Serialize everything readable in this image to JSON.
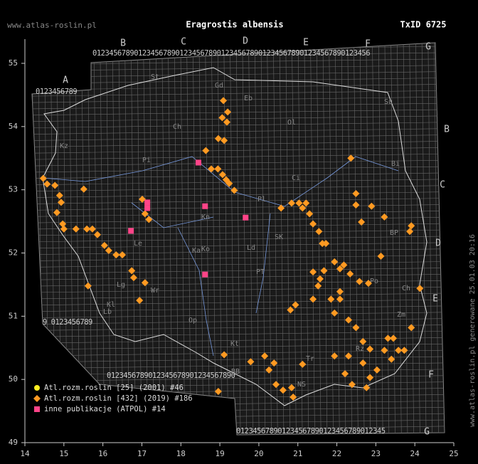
{
  "header": {
    "site": "www.atlas-roslin.pl",
    "title": "Eragrostis albensis",
    "txid": "TxID 6725"
  },
  "side_note": "www.atlas-roslin.pl generowane 25.01.03 20:16",
  "grid": {
    "top_letters": [
      "A",
      "B",
      "C",
      "D",
      "E",
      "F",
      "G"
    ],
    "right_letters": [
      "B",
      "C",
      "D",
      "E",
      "F",
      "G"
    ],
    "strips": [
      "0123456789012345678901234567890123456789012345678901234567890123456",
      "0123456789",
      "9 0123456789",
      "0123456789012345678901234567890",
      "012345678901234567890123456789012345"
    ],
    "regions": [
      "Gd",
      "Eb",
      "Kz",
      "Su",
      "St",
      "Ch",
      "Ol",
      "Pl",
      "Bi",
      "Ci",
      "Pi",
      "Kn",
      "SK",
      "BP",
      "Po",
      "Ko",
      "Ld",
      "Le",
      "Ka",
      "PT",
      "Ch",
      "Lg",
      "Zm",
      "Wr",
      "Kl",
      "Lb",
      "Op",
      "Kt",
      "Tr",
      "BB",
      "NS",
      "Rz"
    ]
  },
  "chart_data": {
    "type": "map",
    "xlim": [
      14,
      25
    ],
    "ylim": [
      49,
      55
    ],
    "xticks": [
      14,
      15,
      16,
      17,
      18,
      19,
      20,
      21,
      22,
      23,
      24,
      25
    ],
    "yticks": [
      49,
      50,
      51,
      52,
      53,
      54,
      55
    ],
    "series": [
      {
        "name": "Atl.rozm.roslin [25] (2001) #46",
        "color": "#ffee22",
        "shape": "circle",
        "lon": [],
        "lat": []
      },
      {
        "name": "Atl.rozm.roslin [432] (2019) #186",
        "color": "#ff9a22",
        "shape": "diamond",
        "lon": [
          19.09,
          19.2,
          19.06,
          19.18,
          18.96,
          19.11,
          18.64,
          18.78,
          18.95,
          19.07,
          19.16,
          19.24,
          19.37,
          20.57,
          20.84,
          21.03,
          21.12,
          21.21,
          21.3,
          21.39,
          21.54,
          21.63,
          21.72,
          14.47,
          14.57,
          14.77,
          14.89,
          14.93,
          14.82,
          14.97,
          15,
          15.31,
          15.59,
          15.73,
          15.86,
          16.04,
          16.15,
          16.34,
          16.5,
          16.74,
          16.79,
          17.08,
          16.94,
          15.62,
          15.51,
          17.01,
          17.08,
          17.18,
          21.94,
          22.18,
          22.08,
          22.34,
          22.58,
          22.81,
          21.67,
          21.39,
          21.57,
          21.52,
          21.39,
          20.81,
          20.94,
          22.08,
          22.08,
          21.85,
          21.94,
          22.3,
          22.49,
          22.67,
          22.85,
          23.22,
          23.58,
          23.73,
          23.31,
          21.94,
          22.3,
          22.67,
          23.03,
          23.4,
          22.85,
          22.39,
          22.21,
          22.76,
          21.12,
          20.84,
          20.15,
          20.39,
          20.26,
          20.44,
          20.62,
          20.88,
          19.79,
          19.11,
          18.96,
          22.36,
          22.49,
          22.49,
          22.89,
          23.22,
          22.63,
          23.91,
          23.87,
          23.13,
          24.13,
          23.91,
          23.45
        ],
        "lat": [
          54.41,
          54.23,
          54.14,
          54.07,
          53.81,
          53.78,
          53.62,
          53.33,
          53.33,
          53.24,
          53.16,
          53.1,
          52.99,
          52.71,
          52.79,
          52.79,
          52.71,
          52.79,
          52.62,
          52.46,
          52.34,
          52.15,
          52.15,
          53.18,
          53.09,
          53.07,
          52.91,
          52.8,
          52.64,
          52.46,
          52.38,
          52.38,
          52.38,
          52.38,
          52.29,
          52.12,
          52.04,
          51.97,
          51.97,
          51.72,
          51.61,
          51.53,
          51.25,
          51.48,
          53.01,
          52.85,
          52.62,
          52.53,
          51.86,
          51.81,
          51.75,
          51.67,
          51.55,
          51.52,
          51.72,
          51.7,
          51.59,
          51.48,
          51.27,
          51.1,
          51.18,
          51.39,
          51.27,
          51.27,
          51.05,
          50.94,
          50.82,
          50.6,
          50.48,
          50.46,
          50.46,
          50.46,
          50.65,
          50.37,
          50.37,
          50.26,
          50.15,
          50.32,
          50.03,
          49.92,
          50.09,
          49.87,
          50.24,
          49.87,
          50.37,
          50.26,
          50.15,
          49.92,
          49.83,
          49.72,
          50.28,
          50.39,
          49.81,
          53.5,
          52.94,
          52.76,
          52.74,
          52.57,
          52.49,
          52.43,
          52.34,
          51.95,
          51.44,
          50.82,
          50.65
        ]
      },
      {
        "name": "inne publikacje (ATPOL) #14",
        "color": "#ff4488",
        "shape": "square",
        "lon": [
          18.45,
          17.14,
          17.14,
          18.62,
          19.66,
          16.72,
          18.62
        ],
        "lat": [
          53.43,
          52.8,
          52.71,
          52.74,
          52.56,
          52.35,
          51.66
        ]
      }
    ]
  }
}
